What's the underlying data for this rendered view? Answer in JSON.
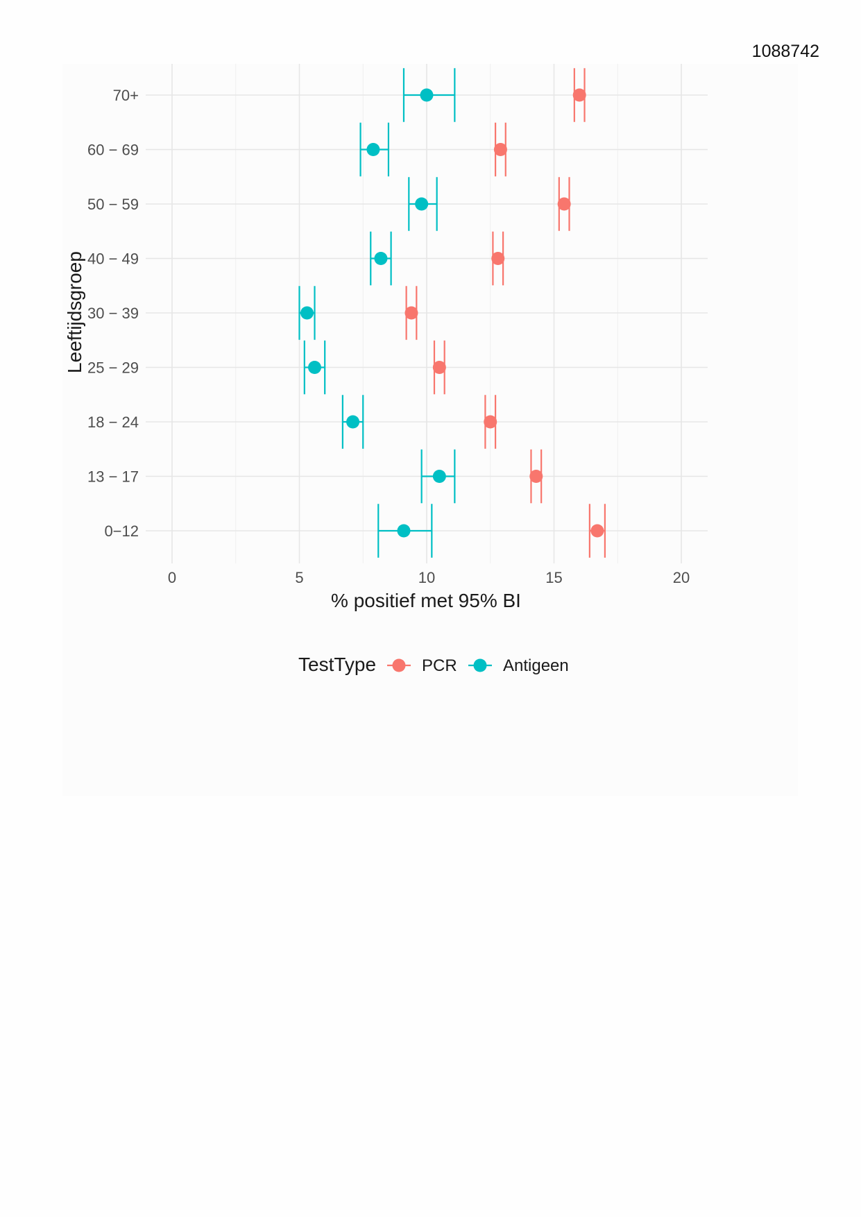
{
  "document": {
    "id": "1088742"
  },
  "chart_data": {
    "type": "scatter",
    "subtype": "dot-with-95ci-errorbars",
    "title": "",
    "xlabel": "% positief met 95% BI",
    "ylabel": "Leeftijdsgroep",
    "xlim": [
      0,
      20
    ],
    "x_ticks": [
      0,
      5,
      10,
      15,
      20
    ],
    "grid": true,
    "legend": {
      "title": "TestType",
      "placement": "bottom",
      "entries": [
        "PCR",
        "Antigeen"
      ]
    },
    "categories": [
      "0−12",
      "13 − 17",
      "18 − 24",
      "25 − 29",
      "30 − 39",
      "40 − 49",
      "50 − 59",
      "60 − 69",
      "70+"
    ],
    "series": [
      {
        "name": "PCR",
        "color": "#F8766D",
        "values": [
          16.7,
          14.3,
          12.5,
          10.5,
          9.4,
          12.8,
          15.4,
          12.9,
          16.0
        ],
        "ci_low": [
          16.4,
          14.1,
          12.3,
          10.3,
          9.2,
          12.6,
          15.2,
          12.7,
          15.8
        ],
        "ci_high": [
          17.0,
          14.5,
          12.7,
          10.7,
          9.6,
          13.0,
          15.6,
          13.1,
          16.2
        ]
      },
      {
        "name": "Antigeen",
        "color": "#00BFC4",
        "values": [
          9.1,
          10.5,
          7.1,
          5.6,
          5.3,
          8.2,
          9.8,
          7.9,
          10.0
        ],
        "ci_low": [
          8.1,
          9.8,
          6.7,
          5.2,
          5.0,
          7.8,
          9.3,
          7.4,
          9.1
        ],
        "ci_high": [
          10.2,
          11.1,
          7.5,
          6.0,
          5.6,
          8.6,
          10.4,
          8.5,
          11.1
        ]
      }
    ]
  }
}
